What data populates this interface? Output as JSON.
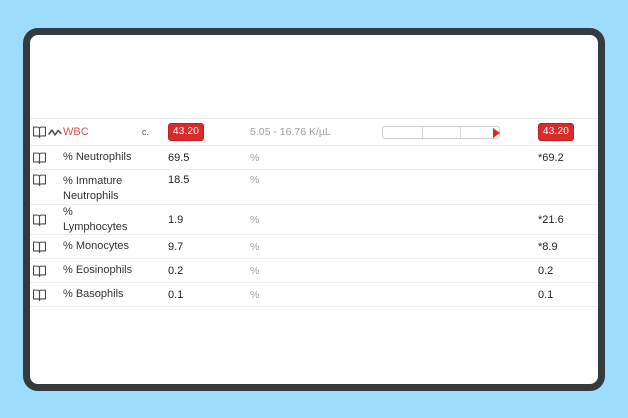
{
  "theme": {
    "background": "#9edcfb",
    "frame": "#333a40",
    "surface": "#ffffff",
    "alert_red": "#d92b2b",
    "alert_text_red": "#d9534f",
    "muted_gray": "#9aa0a6",
    "text_dark": "#333333",
    "divider": "#ececec"
  },
  "table": {
    "rows": [
      {
        "name": "WBC",
        "flag": "c.",
        "value": "43.20",
        "value_alert": true,
        "range_text": "5.05 - 16.76 K/µL",
        "range_bar": true,
        "trend_icon": true,
        "result": "43.20",
        "result_alert": true,
        "name_alert": true
      },
      {
        "name": "% Neutrophils",
        "value": "69.5",
        "range_text": "%",
        "result": "*69.2"
      },
      {
        "name": "% Immature Neutrophils",
        "value": "18.5",
        "range_text": "%",
        "result": ""
      },
      {
        "name": "% Lymphocytes",
        "value": "1.9",
        "range_text": "%",
        "result": "*21.6"
      },
      {
        "name": "% Monocytes",
        "value": "9.7",
        "range_text": "%",
        "result": "*8.9"
      },
      {
        "name": "% Eosinophils",
        "value": "0.2",
        "range_text": "%",
        "result": "0.2"
      },
      {
        "name": "% Basophils",
        "value": "0.1",
        "range_text": "%",
        "result": "0.1"
      }
    ]
  }
}
